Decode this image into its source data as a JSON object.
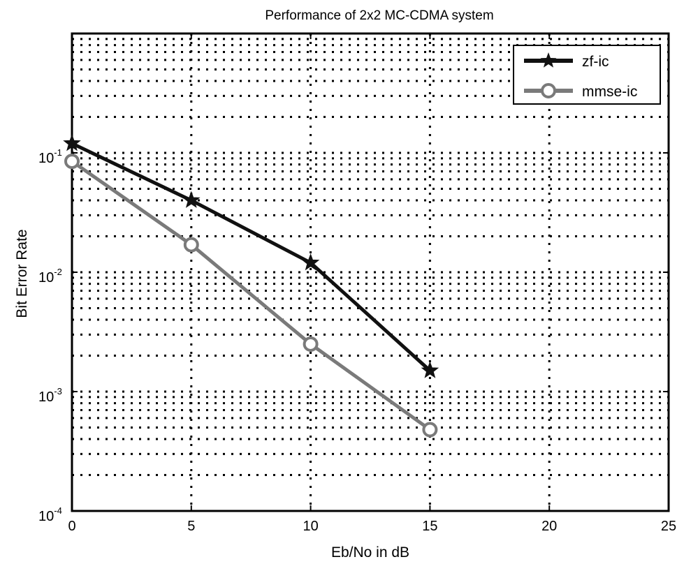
{
  "chart_data": {
    "type": "line",
    "title": "Performance of 2x2 MC-CDMA system",
    "xlabel": "Eb/No in dB",
    "ylabel": "Bit Error Rate",
    "xlim": [
      0,
      25
    ],
    "ylim": [
      0.0001,
      1
    ],
    "yscale": "log",
    "grid": true,
    "x_ticks": [
      "0",
      "5",
      "10",
      "15",
      "20",
      "25"
    ],
    "y_ticks": [
      {
        "base": "10",
        "exp": "-1"
      },
      {
        "base": "10",
        "exp": "-2"
      },
      {
        "base": "10",
        "exp": "-3"
      },
      {
        "base": "10",
        "exp": "-4"
      }
    ],
    "legend_position": "top-right",
    "series": [
      {
        "name": "zf-ic",
        "marker": "star",
        "color": "#111111",
        "x": [
          0,
          5,
          10,
          15
        ],
        "y": [
          0.12,
          0.04,
          0.012,
          0.0015
        ]
      },
      {
        "name": "mmse-ic",
        "marker": "circle",
        "color": "#7a7a7a",
        "x": [
          0,
          5,
          10,
          15
        ],
        "y": [
          0.085,
          0.017,
          0.0025,
          0.00048
        ]
      }
    ]
  }
}
